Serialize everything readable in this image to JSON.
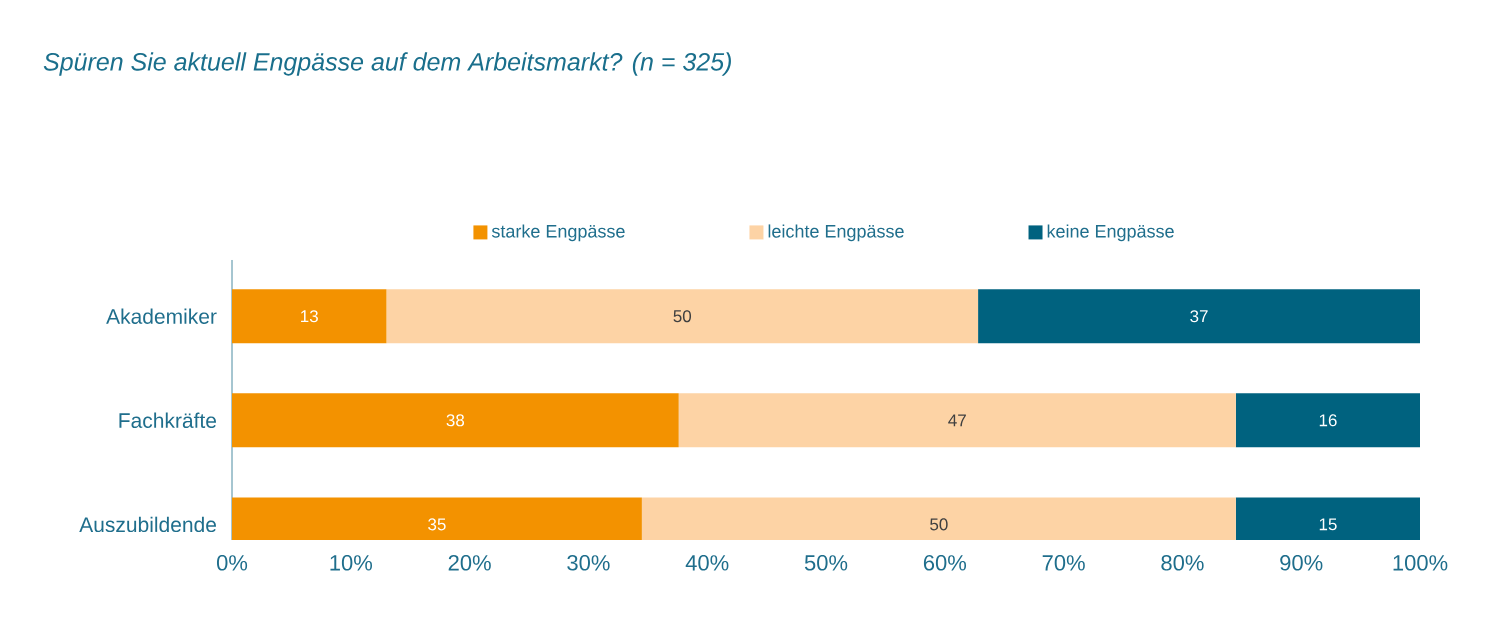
{
  "chart_data": {
    "type": "bar",
    "orientation": "horizontal",
    "stacked": true,
    "title": "Spüren Sie aktuell Engpässe auf dem Arbeitsmarkt? (n = 325)",
    "categories": [
      "Akademiker",
      "Fachkräfte",
      "Auszubildende"
    ],
    "series": [
      {
        "name": "starke Engpässe",
        "color": "#f39200",
        "values": [
          13.0,
          37.6,
          34.5
        ],
        "value_labels": [
          "13",
          "38",
          "35"
        ]
      },
      {
        "name": "leichte Engpässe",
        "color": "#fdd3a5",
        "values": [
          49.8,
          46.9,
          50.0
        ],
        "value_labels": [
          "50",
          "47",
          "50"
        ]
      },
      {
        "name": "keine Engpässe",
        "color": "#00627f",
        "values": [
          37.2,
          15.5,
          15.5
        ],
        "value_labels": [
          "37",
          "16",
          "15"
        ]
      }
    ],
    "xlim": [
      0,
      100
    ],
    "xticks": [
      {
        "value": 0,
        "label": "0%"
      },
      {
        "value": 10,
        "label": "10%"
      },
      {
        "value": 20,
        "label": "20%"
      },
      {
        "value": 30,
        "label": "30%"
      },
      {
        "value": 40,
        "label": "40%"
      },
      {
        "value": 50,
        "label": "50%"
      },
      {
        "value": 60,
        "label": "60%"
      },
      {
        "value": 70,
        "label": "70%"
      },
      {
        "value": 80,
        "label": "80%"
      },
      {
        "value": 90,
        "label": "90%"
      },
      {
        "value": 100,
        "label": "100%"
      }
    ],
    "grid": false,
    "legend": "top"
  }
}
